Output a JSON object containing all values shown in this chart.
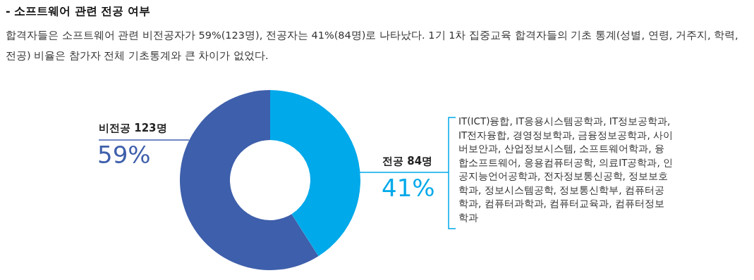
{
  "chart_data": {
    "type": "donut",
    "title": "- 소프트웨어 관련 전공 여부",
    "subtitle": "합격자들은 소프트웨어 관련 비전공자가 59%(123명), 전공자는 41%(84명)로 나타났다. 1기 1차 집중교육 합격자들의 기초 통계(성별, 연령, 거주지, 학력, 전공) 비율은 참가자 전체 기초통계와 큰 차이가 없었다.",
    "categories": [
      "비전공 123명",
      "전공 84명"
    ],
    "values": [
      59,
      41
    ],
    "value_labels": [
      "59%",
      "41%"
    ],
    "colors": [
      "#3e5fab",
      "#00a9ea"
    ],
    "annotations": [
      "IT(ICT)융합, IT응용시스템공학과, IT정보공학과, IT전자융합, 경영정보학과, 금융정보공학과, 사이버보안과, 산업정보시스템, 소프트웨어학과, 융합소프트웨어, 응용컴퓨터공학, 의료IT공학과, 인공지능언어공학과, 전자정보통신공학, 정보보호학과, 정보시스템공학, 정보통신학부, 컴퓨터공학과, 컴퓨터과학과, 컴퓨터교육과, 컴퓨터정보학과"
    ]
  }
}
